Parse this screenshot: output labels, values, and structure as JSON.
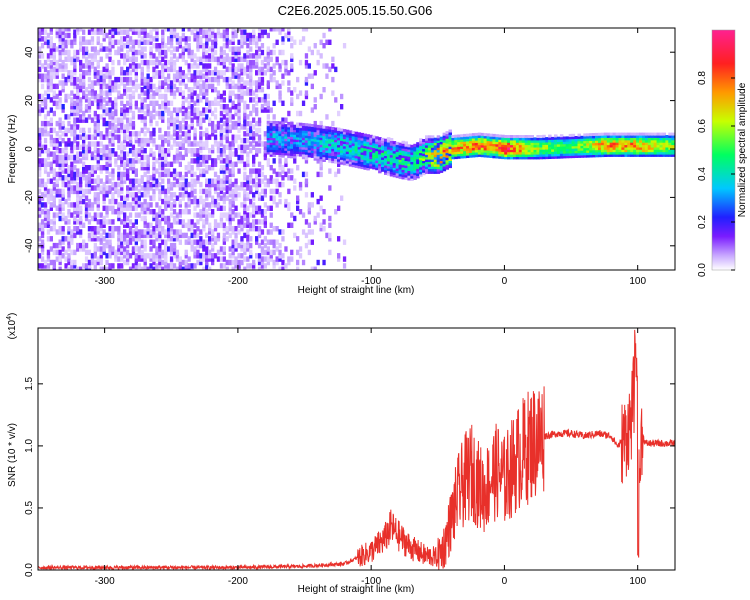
{
  "title": "C2E6.2025.005.15.50.G06",
  "chart_data": [
    {
      "type": "heatmap",
      "xlabel": "Height of straight line (km)",
      "ylabel": "Frequency (Hz)",
      "xlim": [
        -350,
        128
      ],
      "ylim": [
        -50,
        50
      ],
      "xticks": [
        -300,
        -200,
        -100,
        0,
        100
      ],
      "yticks": [
        -40,
        -20,
        0,
        20,
        40
      ],
      "colorbar": {
        "label": "Normalized spectral amplitude",
        "range": [
          0,
          1
        ],
        "ticks": [
          "0.0",
          "0.2",
          "0.4",
          "0.6",
          "0.8"
        ],
        "colors": [
          "#ffffff",
          "#c8a8ff",
          "#7a1cff",
          "#2020ff",
          "#00c8ff",
          "#00ff60",
          "#c8ff00",
          "#ff9900",
          "#ff2020",
          "#ff2090"
        ]
      },
      "ridge": {
        "x": [
          -175,
          -150,
          -125,
          -100,
          -80,
          -70,
          -60,
          -50,
          -40,
          -30,
          -20,
          -10,
          0,
          25,
          50,
          75,
          100,
          128
        ],
        "freq": [
          4,
          3,
          1,
          -2,
          -5,
          -6,
          -3,
          -3,
          0,
          0.5,
          1,
          0.5,
          0,
          0,
          0.5,
          1,
          1,
          1
        ],
        "amp": [
          0.35,
          0.35,
          0.45,
          0.45,
          0.5,
          0.5,
          0.6,
          0.9,
          0.75,
          0.8,
          0.85,
          0.8,
          0.95,
          0.6,
          0.55,
          0.8,
          0.8,
          0.6
        ]
      }
    },
    {
      "type": "line",
      "xlabel": "Height of straight line (km)",
      "ylabel": "SNR (10 * v/v)",
      "multiplier": "(x10^4)",
      "xlim": [
        -350,
        128
      ],
      "ylim": [
        0,
        1.95
      ],
      "xticks": [
        -300,
        -200,
        -100,
        0,
        100
      ],
      "yticks": [
        "0.0",
        "0.5",
        "1.0",
        "1.5"
      ],
      "color": "#e8302a",
      "series": [
        {
          "x": [
            -350,
            -200,
            -150,
            -120,
            -100,
            -90,
            -85,
            -80,
            -70,
            -60,
            -50,
            -45,
            -40,
            -35,
            -30,
            -25,
            -20,
            -15,
            -10,
            -5,
            0,
            10,
            20,
            30,
            40,
            50,
            60,
            70,
            80,
            85,
            90,
            95,
            98,
            100,
            103,
            106,
            110,
            128
          ],
          "y": [
            0.02,
            0.02,
            0.03,
            0.05,
            0.15,
            0.25,
            0.35,
            0.28,
            0.18,
            0.12,
            0.1,
            0.2,
            0.4,
            0.6,
            0.72,
            0.8,
            0.7,
            0.62,
            0.75,
            0.8,
            0.72,
            0.9,
            1.02,
            1.08,
            1.1,
            1.1,
            1.08,
            1.1,
            1.08,
            1.0,
            1.05,
            1.2,
            1.5,
            0.4,
            1.1,
            1.02,
            1.02,
            1.02
          ]
        }
      ]
    }
  ]
}
